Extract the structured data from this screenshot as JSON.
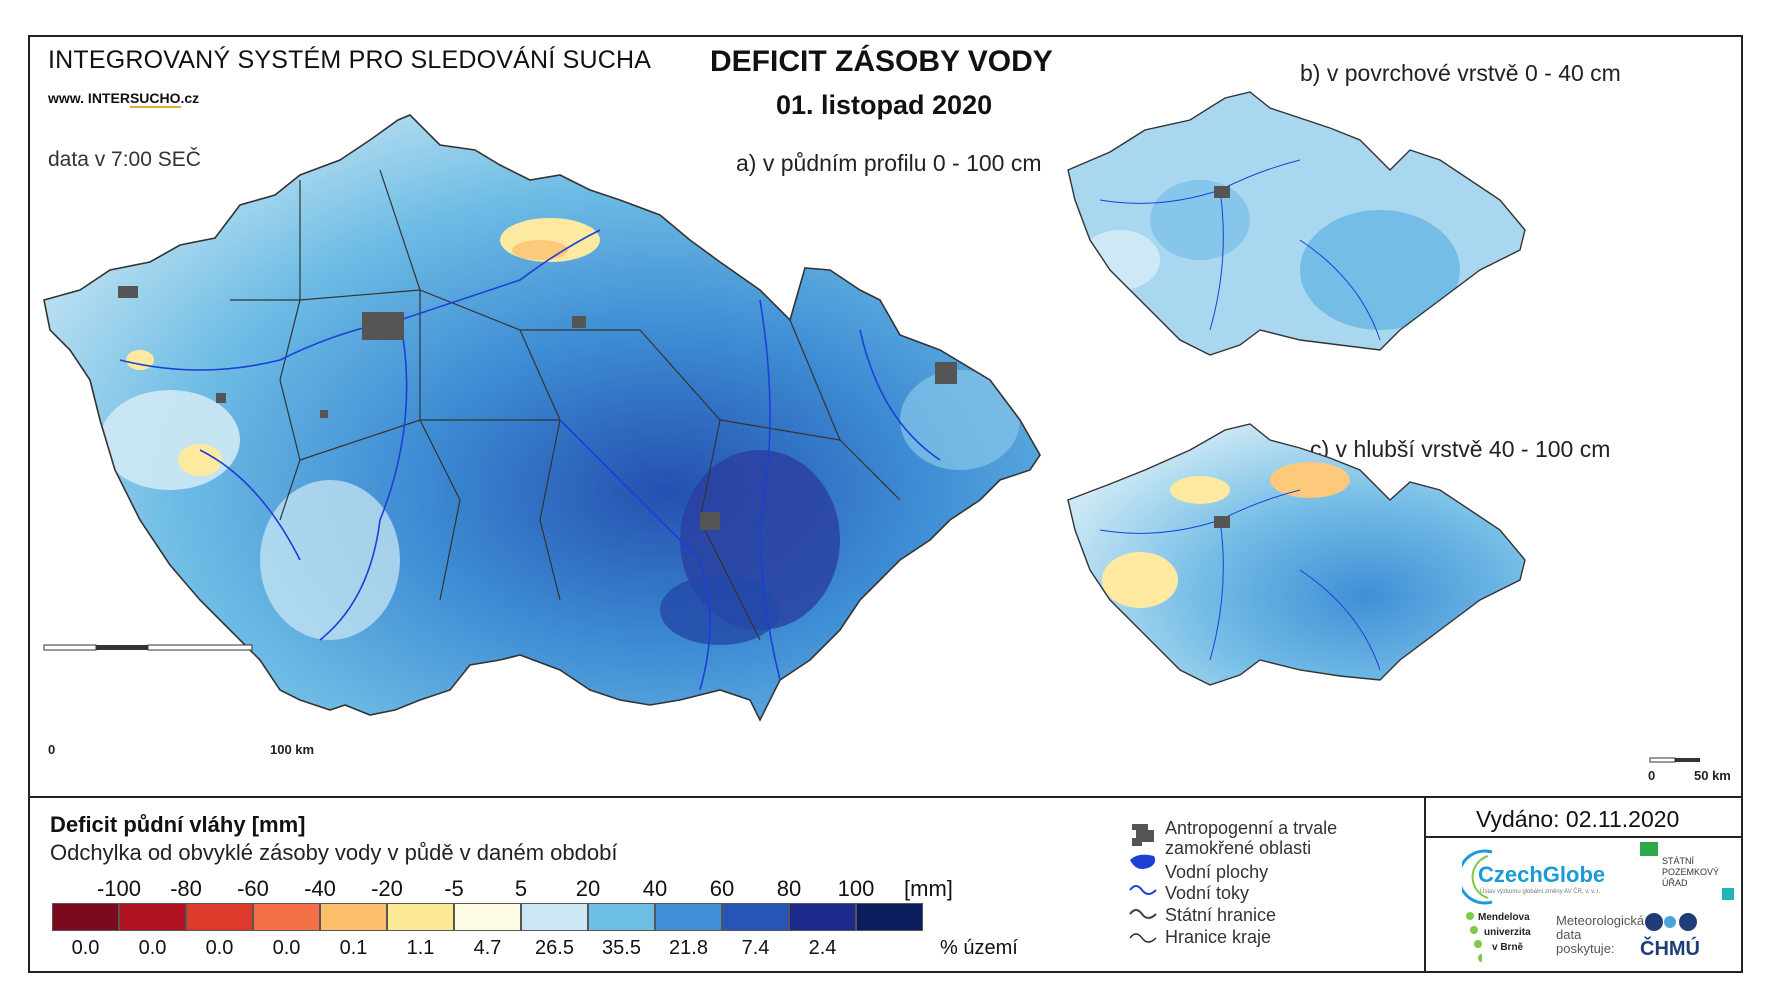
{
  "header": {
    "system_title": "INTEGROVANÝ SYSTÉM PRO SLEDOVÁNÍ SUCHA",
    "website_prefix": "www. INTER",
    "website_u": "SUCHO",
    "website_suffix": ".cz",
    "data_time": "data v 7:00 SEČ",
    "main_title": "DEFICIT ZÁSOBY VODY",
    "date": "01. listopad 2020"
  },
  "maps": {
    "a": {
      "label": "a) v půdním profilu 0 - 100 cm"
    },
    "b": {
      "label": "b) v povrchové vrstvě 0 - 40 cm"
    },
    "c": {
      "label": "c) v hlubší vrstvě 40 - 100 cm"
    }
  },
  "scalebars": {
    "main": {
      "zero": "0",
      "end": "100 km"
    },
    "small": {
      "zero": "0",
      "end": "50 km"
    }
  },
  "legend": {
    "title": "Deficit půdní vláhy  [mm]",
    "subtitle": "Odchylka od obvyklé zásoby vody v půdě v daném období",
    "unit": "[mm]",
    "pct_unit": "% území",
    "ticks": [
      "-100",
      "-80",
      "-60",
      "-40",
      "-20",
      "-5",
      "5",
      "20",
      "40",
      "60",
      "80",
      "100"
    ],
    "classes": [
      {
        "color": "#7b0a1e",
        "pct": "0.0"
      },
      {
        "color": "#b0121f",
        "pct": "0.0"
      },
      {
        "color": "#dc3b2c",
        "pct": "0.0"
      },
      {
        "color": "#f47047",
        "pct": "0.0"
      },
      {
        "color": "#fdbe6b",
        "pct": "0.1"
      },
      {
        "color": "#fdea95",
        "pct": "1.1"
      },
      {
        "color": "#fefde4",
        "pct": "4.7"
      },
      {
        "color": "#cbe8f4",
        "pct": "26.5"
      },
      {
        "color": "#6dbfe6",
        "pct": "35.5"
      },
      {
        "color": "#3f8fd6",
        "pct": "21.8"
      },
      {
        "color": "#2654b7",
        "pct": "7.4"
      },
      {
        "color": "#1c2a8c",
        "pct": "2.4"
      },
      {
        "color": "#0c1d5e",
        "pct": ""
      }
    ]
  },
  "symbols": {
    "anthropogenic": "Antropogenní a trvale",
    "anthropogenic2": "zamokřené oblasti",
    "water_bodies": "Vodní plochy",
    "streams": "Vodní toky",
    "state_border": "Státní hranice",
    "region_border": "Hranice kraje"
  },
  "footer": {
    "issued": "Vydáno: 02.11.2020",
    "czechglobe": "CzechGlobe",
    "czechglobe_sub": "Ústav výzkumu globální změny AV ČR, v. v. i.",
    "spu1": "STÁTNÍ",
    "spu2": "POZEMKOVÝ",
    "spu3": "ÚŘAD",
    "mendel1": "Mendelova",
    "mendel2": "univerzita",
    "mendel3": "v Brně",
    "meteo1": "Meteorologická",
    "meteo2": "data",
    "meteo3": "poskytuje:",
    "chmu": "ČHMÚ"
  }
}
